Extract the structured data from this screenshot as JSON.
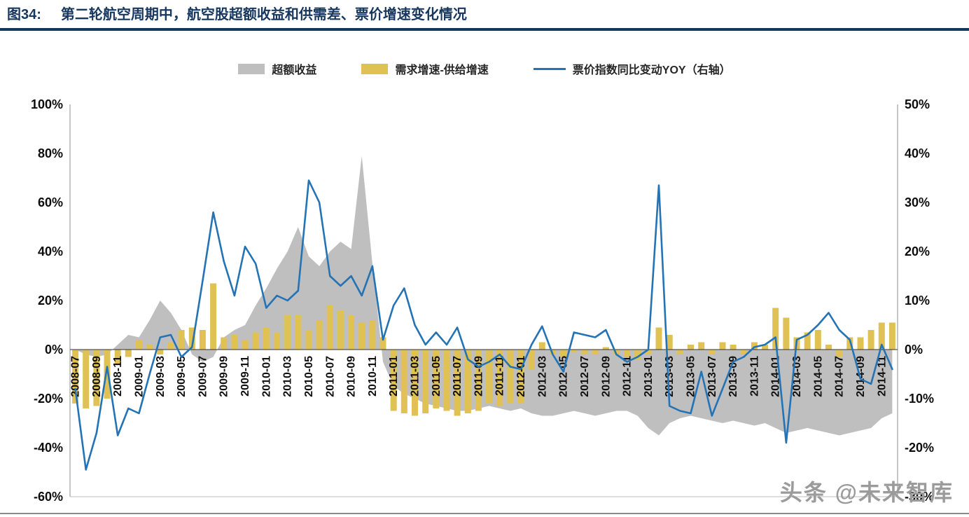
{
  "header": {
    "figure_label": "图34:",
    "title": "第二轮航空周期中，航空股超额收益和供需差、票价增速变化情况"
  },
  "legend": {
    "items": [
      {
        "label": "超额收益",
        "marker": "area-swatch",
        "color": "#BFBFBF"
      },
      {
        "label": "需求增速-供给增速",
        "marker": "bar-swatch",
        "color": "#E0C254"
      },
      {
        "label": "票价指数同比变动YOY（右轴）",
        "marker": "line-sample",
        "color": "#2473B5"
      }
    ]
  },
  "watermark": "头条 @未来智库",
  "chart_data": {
    "type": "combo",
    "combo_types": [
      "area",
      "bar",
      "line"
    ],
    "title": "第二轮航空周期中，航空股超额收益和供需差、票价增速变化情况",
    "grid": false,
    "legend_position": "top",
    "x_tick_step": 2,
    "x": [
      "2008-07",
      "2008-08",
      "2008-09",
      "2008-10",
      "2008-11",
      "2008-12",
      "2009-01",
      "2009-02",
      "2009-03",
      "2009-04",
      "2009-05",
      "2009-06",
      "2009-07",
      "2009-08",
      "2009-09",
      "2009-10",
      "2009-11",
      "2009-12",
      "2010-01",
      "2010-02",
      "2010-03",
      "2010-04",
      "2010-05",
      "2010-06",
      "2010-07",
      "2010-08",
      "2010-09",
      "2010-10",
      "2010-11",
      "2010-12",
      "2011-01",
      "2011-02",
      "2011-03",
      "2011-04",
      "2011-05",
      "2011-06",
      "2011-07",
      "2011-08",
      "2011-09",
      "2011-10",
      "2011-11",
      "2011-12",
      "2012-01",
      "2012-02",
      "2012-03",
      "2012-04",
      "2012-05",
      "2012-06",
      "2012-07",
      "2012-08",
      "2012-09",
      "2012-10",
      "2012-11",
      "2012-12",
      "2013-01",
      "2013-02",
      "2013-03",
      "2013-04",
      "2013-05",
      "2013-06",
      "2013-07",
      "2013-08",
      "2013-09",
      "2013-10",
      "2013-11",
      "2013-12",
      "2014-01",
      "2014-02",
      "2014-03",
      "2014-04",
      "2014-05",
      "2014-06",
      "2014-07",
      "2014-08",
      "2014-09",
      "2014-10",
      "2014-11",
      "2014-12"
    ],
    "left_axis": {
      "min": -60,
      "max": 100,
      "tick_labels": [
        "100%",
        "80%",
        "60%",
        "40%",
        "20%",
        "0%",
        "-20%",
        "-40%",
        "-60%"
      ]
    },
    "right_axis": {
      "min": -30,
      "max": 50,
      "tick_labels": [
        "50%",
        "40%",
        "30%",
        "20%",
        "10%",
        "0%",
        "-10%",
        "-20%",
        "-30%"
      ]
    },
    "series": [
      {
        "name": "超额收益",
        "type": "area",
        "axis": "left",
        "color": "#BFBFBF",
        "values": [
          0,
          -2,
          -3,
          -2,
          2,
          6,
          5,
          12,
          20,
          15,
          8,
          -2,
          -5,
          -3,
          5,
          8,
          10,
          18,
          25,
          33,
          40,
          50,
          38,
          34,
          40,
          44,
          41,
          79,
          35,
          -5,
          -15,
          -18,
          -20,
          -22,
          -23,
          -24,
          -25,
          -25,
          -24,
          -23,
          -24,
          -25,
          -24,
          -26,
          -27,
          -27,
          -26,
          -25,
          -26,
          -27,
          -26,
          -25,
          -25,
          -27,
          -32,
          -35,
          -30,
          -28,
          -27,
          -28,
          -29,
          -30,
          -29,
          -30,
          -31,
          -30,
          -32,
          -34,
          -33,
          -32,
          -33,
          -34,
          -35,
          -34,
          -33,
          -32,
          -28,
          -26
        ]
      },
      {
        "name": "需求增速-供给增速",
        "type": "bar",
        "axis": "left",
        "color": "#E0C254",
        "values": [
          -22,
          -24,
          -23,
          -20,
          -6,
          -3,
          4,
          2,
          -2,
          3,
          8,
          9,
          8,
          27,
          5,
          6,
          4,
          7,
          9,
          7,
          14,
          14,
          8,
          12,
          18,
          16,
          14,
          11,
          12,
          5,
          -25,
          -26,
          -27,
          -26,
          -24,
          -25,
          -27,
          -26,
          -25,
          -22,
          -23,
          -22,
          -22,
          -8,
          3,
          -2,
          -3,
          -1,
          -2,
          -2,
          1,
          -2,
          -3,
          -4,
          -2,
          9,
          6,
          -2,
          2,
          3,
          -2,
          3,
          2,
          -2,
          3,
          2,
          17,
          13,
          5,
          7,
          8,
          2,
          -3,
          5,
          5,
          8,
          11,
          11
        ]
      },
      {
        "name": "票价指数同比变动YOY（右轴）",
        "type": "line",
        "axis": "right",
        "color": "#2473B5",
        "values": [
          -8,
          -24.5,
          -17,
          -3.5,
          -17.5,
          -12,
          -13,
          -5,
          2.5,
          3,
          -1.5,
          0.5,
          14,
          28,
          18,
          11,
          21,
          17.5,
          8.5,
          11,
          10,
          12,
          34.5,
          30,
          15,
          13,
          15,
          11,
          17,
          2,
          9,
          12.5,
          5,
          1,
          3.5,
          1,
          4.5,
          -2,
          -3.5,
          -2.5,
          -1,
          -3.5,
          -4,
          1,
          4.75,
          -1,
          -4.5,
          3.5,
          3,
          2.5,
          4,
          -1,
          -2.5,
          -1.5,
          0,
          33.5,
          -11.5,
          -12.5,
          -13,
          -4.5,
          -13.5,
          -8,
          -2.5,
          -1.5,
          0.5,
          1,
          2.5,
          -19,
          2,
          3,
          5,
          7.5,
          4,
          2,
          -6,
          -7,
          1,
          -4
        ]
      }
    ]
  }
}
